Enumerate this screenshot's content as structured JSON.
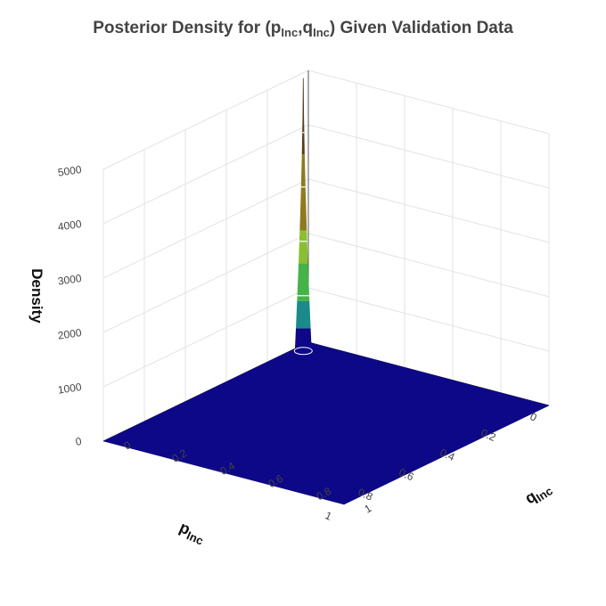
{
  "chart_data": {
    "type": "surface",
    "title_parts": {
      "main": "Posterior Density for (",
      "p": "p",
      "p_sub": "Inc",
      "comma": ",",
      "q": "q",
      "q_sub": "Inc",
      "tail": ") Given Validation Data"
    },
    "xlabel": {
      "base": "p",
      "sub": "Inc"
    },
    "ylabel": {
      "base": "q",
      "sub": "Inc"
    },
    "zlabel": "Density",
    "xlim": [
      0,
      1
    ],
    "ylim": [
      0,
      1
    ],
    "zlim": [
      0,
      5000
    ],
    "x_ticks": [
      "0",
      "0.2",
      "0.4",
      "0.6",
      "0.8",
      "1"
    ],
    "y_ticks": [
      "0",
      "0.2",
      "0.4",
      "0.6",
      "0.8",
      "1"
    ],
    "z_ticks": [
      "0",
      "1000",
      "2000",
      "3000",
      "4000",
      "5000"
    ],
    "peak": {
      "p": 0.06,
      "q": 0.03,
      "density": 5000
    },
    "contour_levels": [
      1000,
      2000,
      3000,
      4000
    ],
    "colorscale": [
      "#0d0887",
      "#1a8a8a",
      "#45b24a",
      "#8bbf2f",
      "#8f7a1e",
      "#5a3a1a",
      "#f0f0f0"
    ],
    "grid": true
  }
}
